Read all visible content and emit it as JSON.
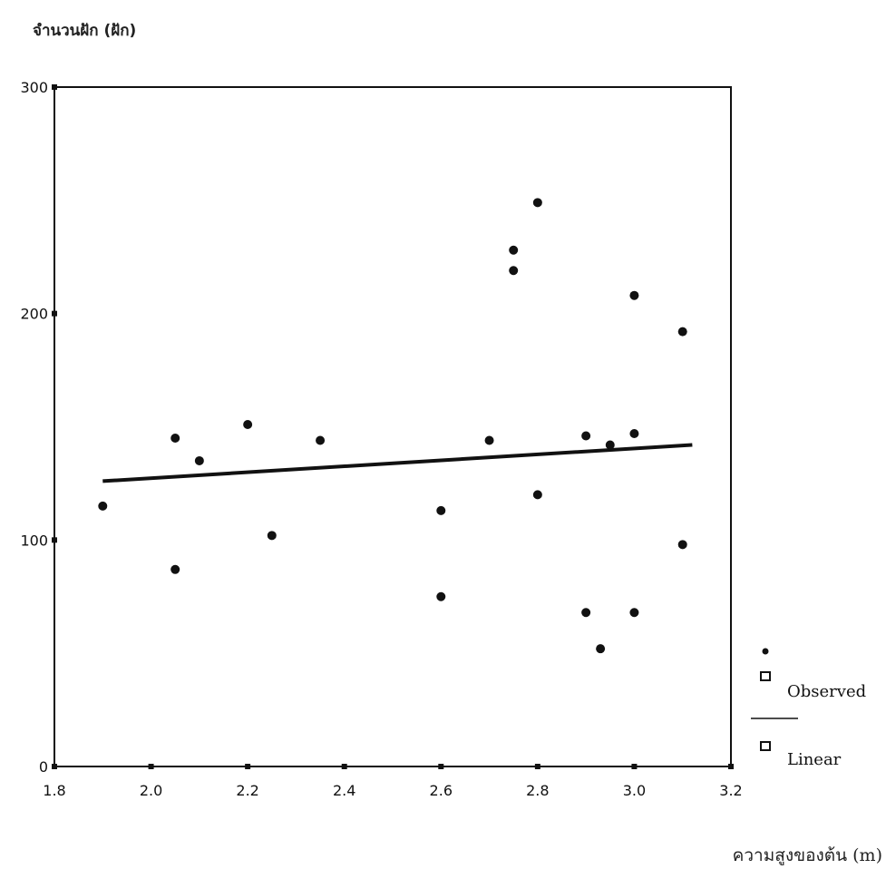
{
  "chart_data": {
    "type": "scatter",
    "title": "",
    "ylabel": "จำนวนฝัก (ฝัก)",
    "xlabel": "ความสูงของต้น (m)",
    "xlim": [
      1.8,
      3.2
    ],
    "ylim": [
      0,
      300
    ],
    "x_ticks": [
      "1.8",
      "2.0",
      "2.2",
      "2.4",
      "2.6",
      "2.8",
      "3.0",
      "3.2"
    ],
    "y_ticks": [
      "0",
      "100",
      "200",
      "300"
    ],
    "legend": [
      "Observed",
      "Linear"
    ],
    "legend_position": "right",
    "grid": false,
    "series": [
      {
        "name": "Observed",
        "points": [
          {
            "x": 1.9,
            "y": 115
          },
          {
            "x": 2.05,
            "y": 145
          },
          {
            "x": 2.05,
            "y": 87
          },
          {
            "x": 2.1,
            "y": 135
          },
          {
            "x": 2.2,
            "y": 151
          },
          {
            "x": 2.25,
            "y": 102
          },
          {
            "x": 2.35,
            "y": 144
          },
          {
            "x": 2.6,
            "y": 113
          },
          {
            "x": 2.6,
            "y": 75
          },
          {
            "x": 2.7,
            "y": 144
          },
          {
            "x": 2.75,
            "y": 228
          },
          {
            "x": 2.75,
            "y": 219
          },
          {
            "x": 2.8,
            "y": 249
          },
          {
            "x": 2.8,
            "y": 120
          },
          {
            "x": 2.9,
            "y": 146
          },
          {
            "x": 2.9,
            "y": 68
          },
          {
            "x": 2.93,
            "y": 52
          },
          {
            "x": 2.95,
            "y": 142
          },
          {
            "x": 3.0,
            "y": 147
          },
          {
            "x": 3.0,
            "y": 208
          },
          {
            "x": 3.0,
            "y": 68
          },
          {
            "x": 3.1,
            "y": 192
          },
          {
            "x": 3.1,
            "y": 98
          }
        ]
      },
      {
        "name": "Linear",
        "line": [
          {
            "x": 1.9,
            "y": 126
          },
          {
            "x": 3.12,
            "y": 142
          }
        ]
      }
    ]
  }
}
